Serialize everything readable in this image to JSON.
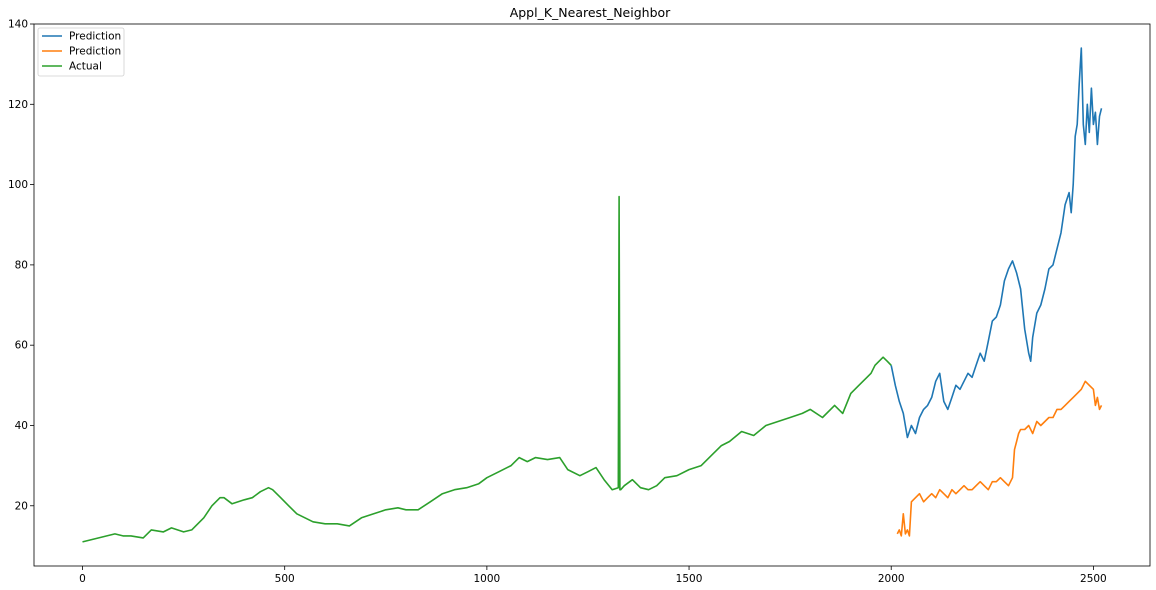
{
  "chart_data": {
    "type": "line",
    "title": "Appl_K_Nearest_Neighbor",
    "xlabel": "",
    "ylabel": "",
    "xlim": [
      -120,
      2640
    ],
    "ylim": [
      5,
      140
    ],
    "xticks": [
      0,
      500,
      1000,
      1500,
      2000,
      2500
    ],
    "yticks": [
      20,
      40,
      60,
      80,
      100,
      120,
      140
    ],
    "grid": false,
    "legend_position": "top-left",
    "series": [
      {
        "name": "Prediction",
        "color": "#1f77b4",
        "x": [
          2000,
          2010,
          2020,
          2030,
          2040,
          2050,
          2060,
          2070,
          2080,
          2090,
          2100,
          2110,
          2120,
          2130,
          2140,
          2150,
          2160,
          2170,
          2180,
          2190,
          2200,
          2210,
          2220,
          2230,
          2240,
          2250,
          2260,
          2270,
          2280,
          2290,
          2300,
          2310,
          2320,
          2330,
          2340,
          2345,
          2350,
          2360,
          2370,
          2380,
          2390,
          2400,
          2410,
          2420,
          2430,
          2440,
          2445,
          2450,
          2455,
          2460,
          2465,
          2470,
          2475,
          2480,
          2485,
          2490,
          2495,
          2500,
          2505,
          2510,
          2515,
          2520
        ],
        "y": [
          55,
          50,
          46,
          43,
          37,
          40,
          38,
          42,
          44,
          45,
          47,
          51,
          53,
          46,
          44,
          47,
          50,
          49,
          51,
          53,
          52,
          55,
          58,
          56,
          61,
          66,
          67,
          70,
          76,
          79,
          81,
          78,
          74,
          64,
          58,
          56,
          62,
          68,
          70,
          74,
          79,
          80,
          84,
          88,
          95,
          98,
          93,
          100,
          112,
          115,
          125,
          134,
          115,
          110,
          120,
          113,
          124,
          115,
          118,
          110,
          117,
          119
        ]
      },
      {
        "name": "Prediction",
        "color": "#ff7f0e",
        "x": [
          2015,
          2020,
          2025,
          2030,
          2035,
          2040,
          2045,
          2050,
          2060,
          2070,
          2080,
          2090,
          2100,
          2110,
          2120,
          2130,
          2140,
          2150,
          2160,
          2170,
          2180,
          2190,
          2200,
          2210,
          2220,
          2230,
          2240,
          2250,
          2260,
          2270,
          2280,
          2290,
          2300,
          2305,
          2310,
          2315,
          2320,
          2330,
          2340,
          2350,
          2360,
          2370,
          2380,
          2390,
          2400,
          2410,
          2420,
          2430,
          2440,
          2450,
          2460,
          2470,
          2480,
          2490,
          2500,
          2505,
          2510,
          2515,
          2520
        ],
        "y": [
          13,
          14,
          12.5,
          18,
          13,
          14,
          12.5,
          21,
          22,
          23,
          21,
          22,
          23,
          22,
          24,
          23,
          22,
          24,
          23,
          24,
          25,
          24,
          24,
          25,
          26,
          25,
          24,
          26,
          26,
          27,
          26,
          25,
          27,
          34,
          36,
          38,
          39,
          39,
          40,
          38,
          41,
          40,
          41,
          42,
          42,
          44,
          44,
          45,
          46,
          47,
          48,
          49,
          51,
          50,
          49,
          45,
          47,
          44,
          45
        ]
      },
      {
        "name": "Actual",
        "color": "#2ca02c",
        "x": [
          0,
          20,
          40,
          60,
          80,
          100,
          120,
          150,
          170,
          200,
          220,
          250,
          270,
          300,
          320,
          340,
          350,
          370,
          400,
          420,
          440,
          460,
          470,
          490,
          510,
          530,
          550,
          570,
          600,
          630,
          660,
          690,
          720,
          750,
          780,
          800,
          830,
          860,
          890,
          920,
          950,
          980,
          1000,
          1030,
          1060,
          1080,
          1100,
          1120,
          1150,
          1180,
          1200,
          1230,
          1250,
          1270,
          1290,
          1310,
          1325,
          1327,
          1329,
          1331,
          1340,
          1360,
          1380,
          1400,
          1420,
          1440,
          1470,
          1500,
          1530,
          1560,
          1580,
          1600,
          1630,
          1660,
          1690,
          1720,
          1750,
          1780,
          1800,
          1830,
          1860,
          1880,
          1900,
          1920,
          1940,
          1950,
          1960,
          1970,
          1980,
          1990,
          2000
        ],
        "y": [
          11,
          11.5,
          12,
          12.5,
          13,
          12.5,
          12.5,
          12,
          14,
          13.5,
          14.5,
          13.5,
          14,
          17,
          20,
          22,
          22,
          20.5,
          21.5,
          22,
          23.5,
          24.5,
          24,
          22,
          20,
          18,
          17,
          16,
          15.5,
          15.5,
          15,
          17,
          18,
          19,
          19.5,
          19,
          19,
          21,
          23,
          24,
          24.5,
          25.5,
          27,
          28.5,
          30,
          32,
          31,
          32,
          31.5,
          32,
          29,
          27.5,
          28.5,
          29.5,
          26.5,
          24,
          24.5,
          97,
          24,
          24,
          25,
          26.5,
          24.5,
          24,
          25,
          27,
          27.5,
          29,
          30,
          33,
          35,
          36,
          38.5,
          37.5,
          40,
          41,
          42,
          43,
          44,
          42,
          45,
          43,
          48,
          50,
          52,
          53,
          55,
          56,
          57,
          56,
          55
        ]
      }
    ]
  }
}
